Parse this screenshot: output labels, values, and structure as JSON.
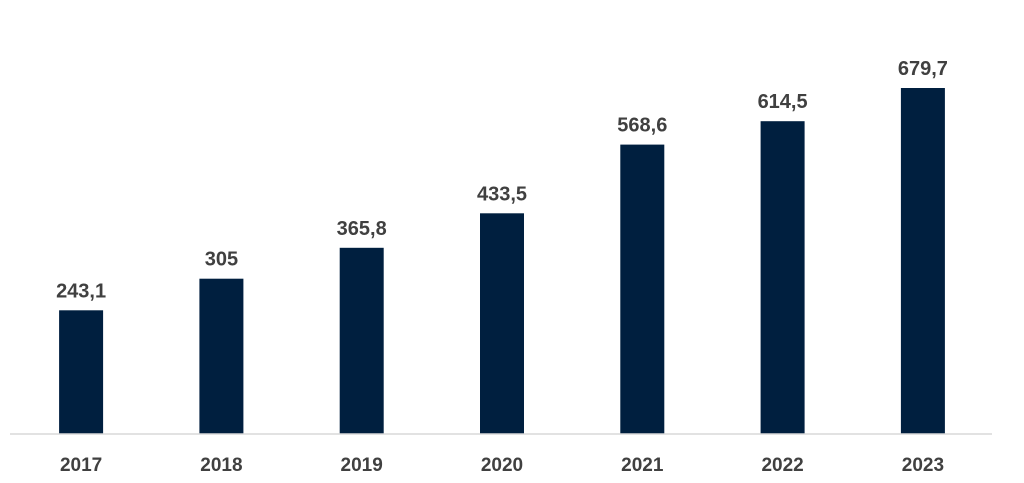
{
  "chart_data": {
    "type": "bar",
    "categories": [
      "2017",
      "2018",
      "2019",
      "2020",
      "2021",
      "2022",
      "2023"
    ],
    "values": [
      243.1,
      305,
      365.8,
      433.5,
      568.6,
      614.5,
      679.7
    ],
    "value_labels": [
      "243,1",
      "305",
      "365,8",
      "433,5",
      "568,6",
      "614,5",
      "679,7"
    ],
    "title": "",
    "xlabel": "",
    "ylabel": "",
    "ylim": [
      0,
      700
    ],
    "grid": false,
    "legend": "none",
    "colors": {
      "bar": "#001f3f",
      "axis": "#d9d9d9",
      "text": "#404040"
    }
  }
}
